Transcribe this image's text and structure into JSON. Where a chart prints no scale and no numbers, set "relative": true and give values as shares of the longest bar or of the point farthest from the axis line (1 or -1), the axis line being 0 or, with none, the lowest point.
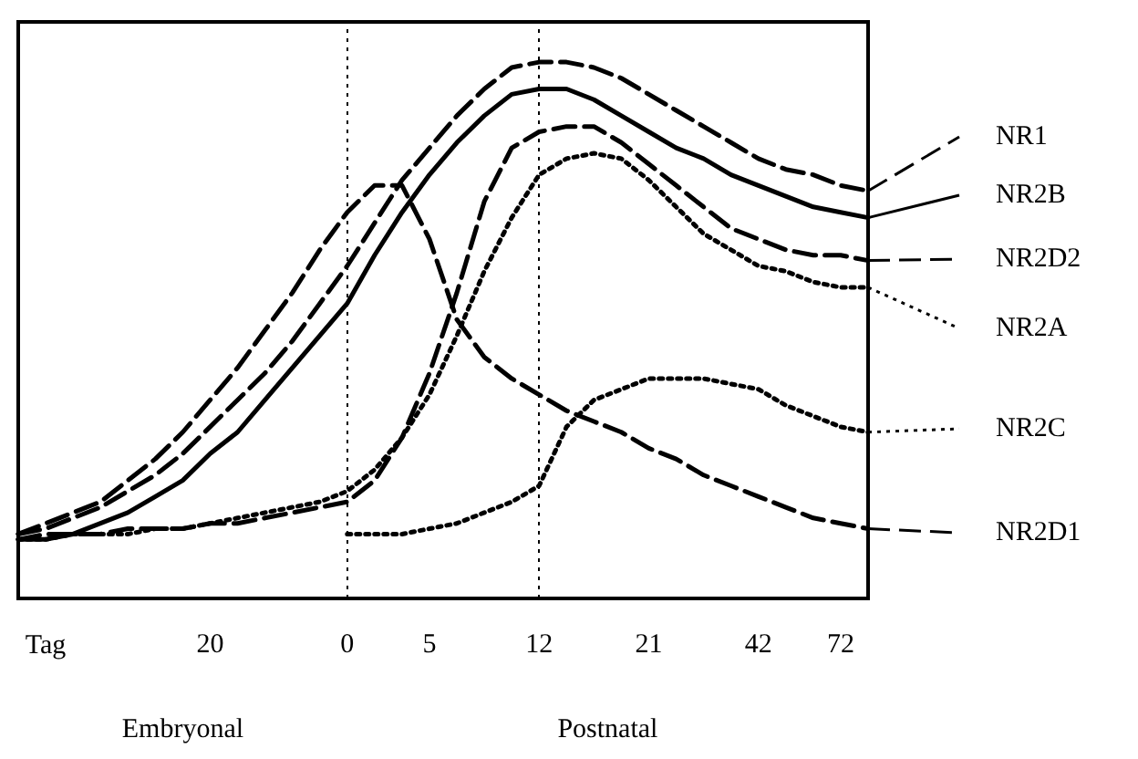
{
  "chart_data": {
    "type": "line",
    "relative": true,
    "xlabel": "Tag",
    "categories": [
      null,
      null,
      null,
      null,
      null,
      null,
      null,
      "20",
      null,
      null,
      null,
      null,
      "0",
      null,
      null,
      "5",
      null,
      null,
      null,
      "12",
      null,
      null,
      null,
      "21",
      null,
      null,
      null,
      "42",
      null,
      null,
      "72",
      null
    ],
    "series": [
      {
        "name": "NR1",
        "color": "#000000",
        "line_style": "dashed",
        "values": [
          0.12,
          0.13,
          0.15,
          0.17,
          0.2,
          0.23,
          0.27,
          0.32,
          0.37,
          0.42,
          0.48,
          0.55,
          0.62,
          0.7,
          0.78,
          0.84,
          0.9,
          0.95,
          0.99,
          1.0,
          1.0,
          0.99,
          0.97,
          0.94,
          0.91,
          0.88,
          0.85,
          0.82,
          0.8,
          0.79,
          0.77,
          0.76
        ]
      },
      {
        "name": "NR2B",
        "color": "#000000",
        "line_style": "solid",
        "values": [
          0.11,
          0.11,
          0.12,
          0.14,
          0.16,
          0.19,
          0.22,
          0.27,
          0.31,
          0.37,
          0.43,
          0.49,
          0.55,
          0.64,
          0.72,
          0.79,
          0.85,
          0.9,
          0.94,
          0.95,
          0.95,
          0.93,
          0.9,
          0.87,
          0.84,
          0.82,
          0.79,
          0.77,
          0.75,
          0.73,
          0.72,
          0.71
        ]
      },
      {
        "name": "NR2D2",
        "color": "#000000",
        "line_style": "dashed",
        "values": [
          0.11,
          0.12,
          0.12,
          0.12,
          0.13,
          0.13,
          0.13,
          0.14,
          0.14,
          0.15,
          0.16,
          0.17,
          0.18,
          0.22,
          0.3,
          0.42,
          0.57,
          0.74,
          0.84,
          0.87,
          0.88,
          0.88,
          0.85,
          0.81,
          0.77,
          0.73,
          0.69,
          0.67,
          0.65,
          0.64,
          0.64,
          0.63
        ]
      },
      {
        "name": "NR2A",
        "color": "#000000",
        "line_style": "dotted",
        "values": [
          0.11,
          0.11,
          0.12,
          0.12,
          0.12,
          0.13,
          0.13,
          0.14,
          0.15,
          0.16,
          0.17,
          0.18,
          0.2,
          0.24,
          0.3,
          0.38,
          0.49,
          0.61,
          0.71,
          0.79,
          0.82,
          0.83,
          0.82,
          0.78,
          0.73,
          0.68,
          0.65,
          0.62,
          0.61,
          0.59,
          0.58,
          0.58
        ]
      },
      {
        "name": "NR2C",
        "color": "#000000",
        "line_style": "dotted",
        "values": [
          null,
          null,
          null,
          null,
          null,
          null,
          null,
          null,
          null,
          null,
          null,
          null,
          0.12,
          0.12,
          0.12,
          0.13,
          0.14,
          0.16,
          0.18,
          0.21,
          0.32,
          0.37,
          0.39,
          0.41,
          0.41,
          0.41,
          0.4,
          0.39,
          0.36,
          0.34,
          0.32,
          0.31
        ]
      },
      {
        "name": "NR2D1",
        "color": "#000000",
        "line_style": "dashed",
        "values": [
          0.12,
          0.14,
          0.16,
          0.18,
          0.22,
          0.26,
          0.31,
          0.37,
          0.43,
          0.5,
          0.57,
          0.65,
          0.72,
          0.77,
          0.77,
          0.67,
          0.52,
          0.45,
          0.41,
          0.38,
          0.35,
          0.33,
          0.31,
          0.28,
          0.26,
          0.23,
          0.21,
          0.19,
          0.17,
          0.15,
          0.14,
          0.13
        ]
      }
    ],
    "ref_lines": [
      {
        "axis": "x",
        "value": "0",
        "line_style": "dotted",
        "color": "#000000"
      },
      {
        "axis": "x",
        "value": "12",
        "line_style": "dotted",
        "color": "#000000"
      }
    ],
    "annotations": [
      "Embryonal",
      "Postnatal"
    ],
    "legend": "right",
    "grid": false,
    "marker": "none"
  }
}
